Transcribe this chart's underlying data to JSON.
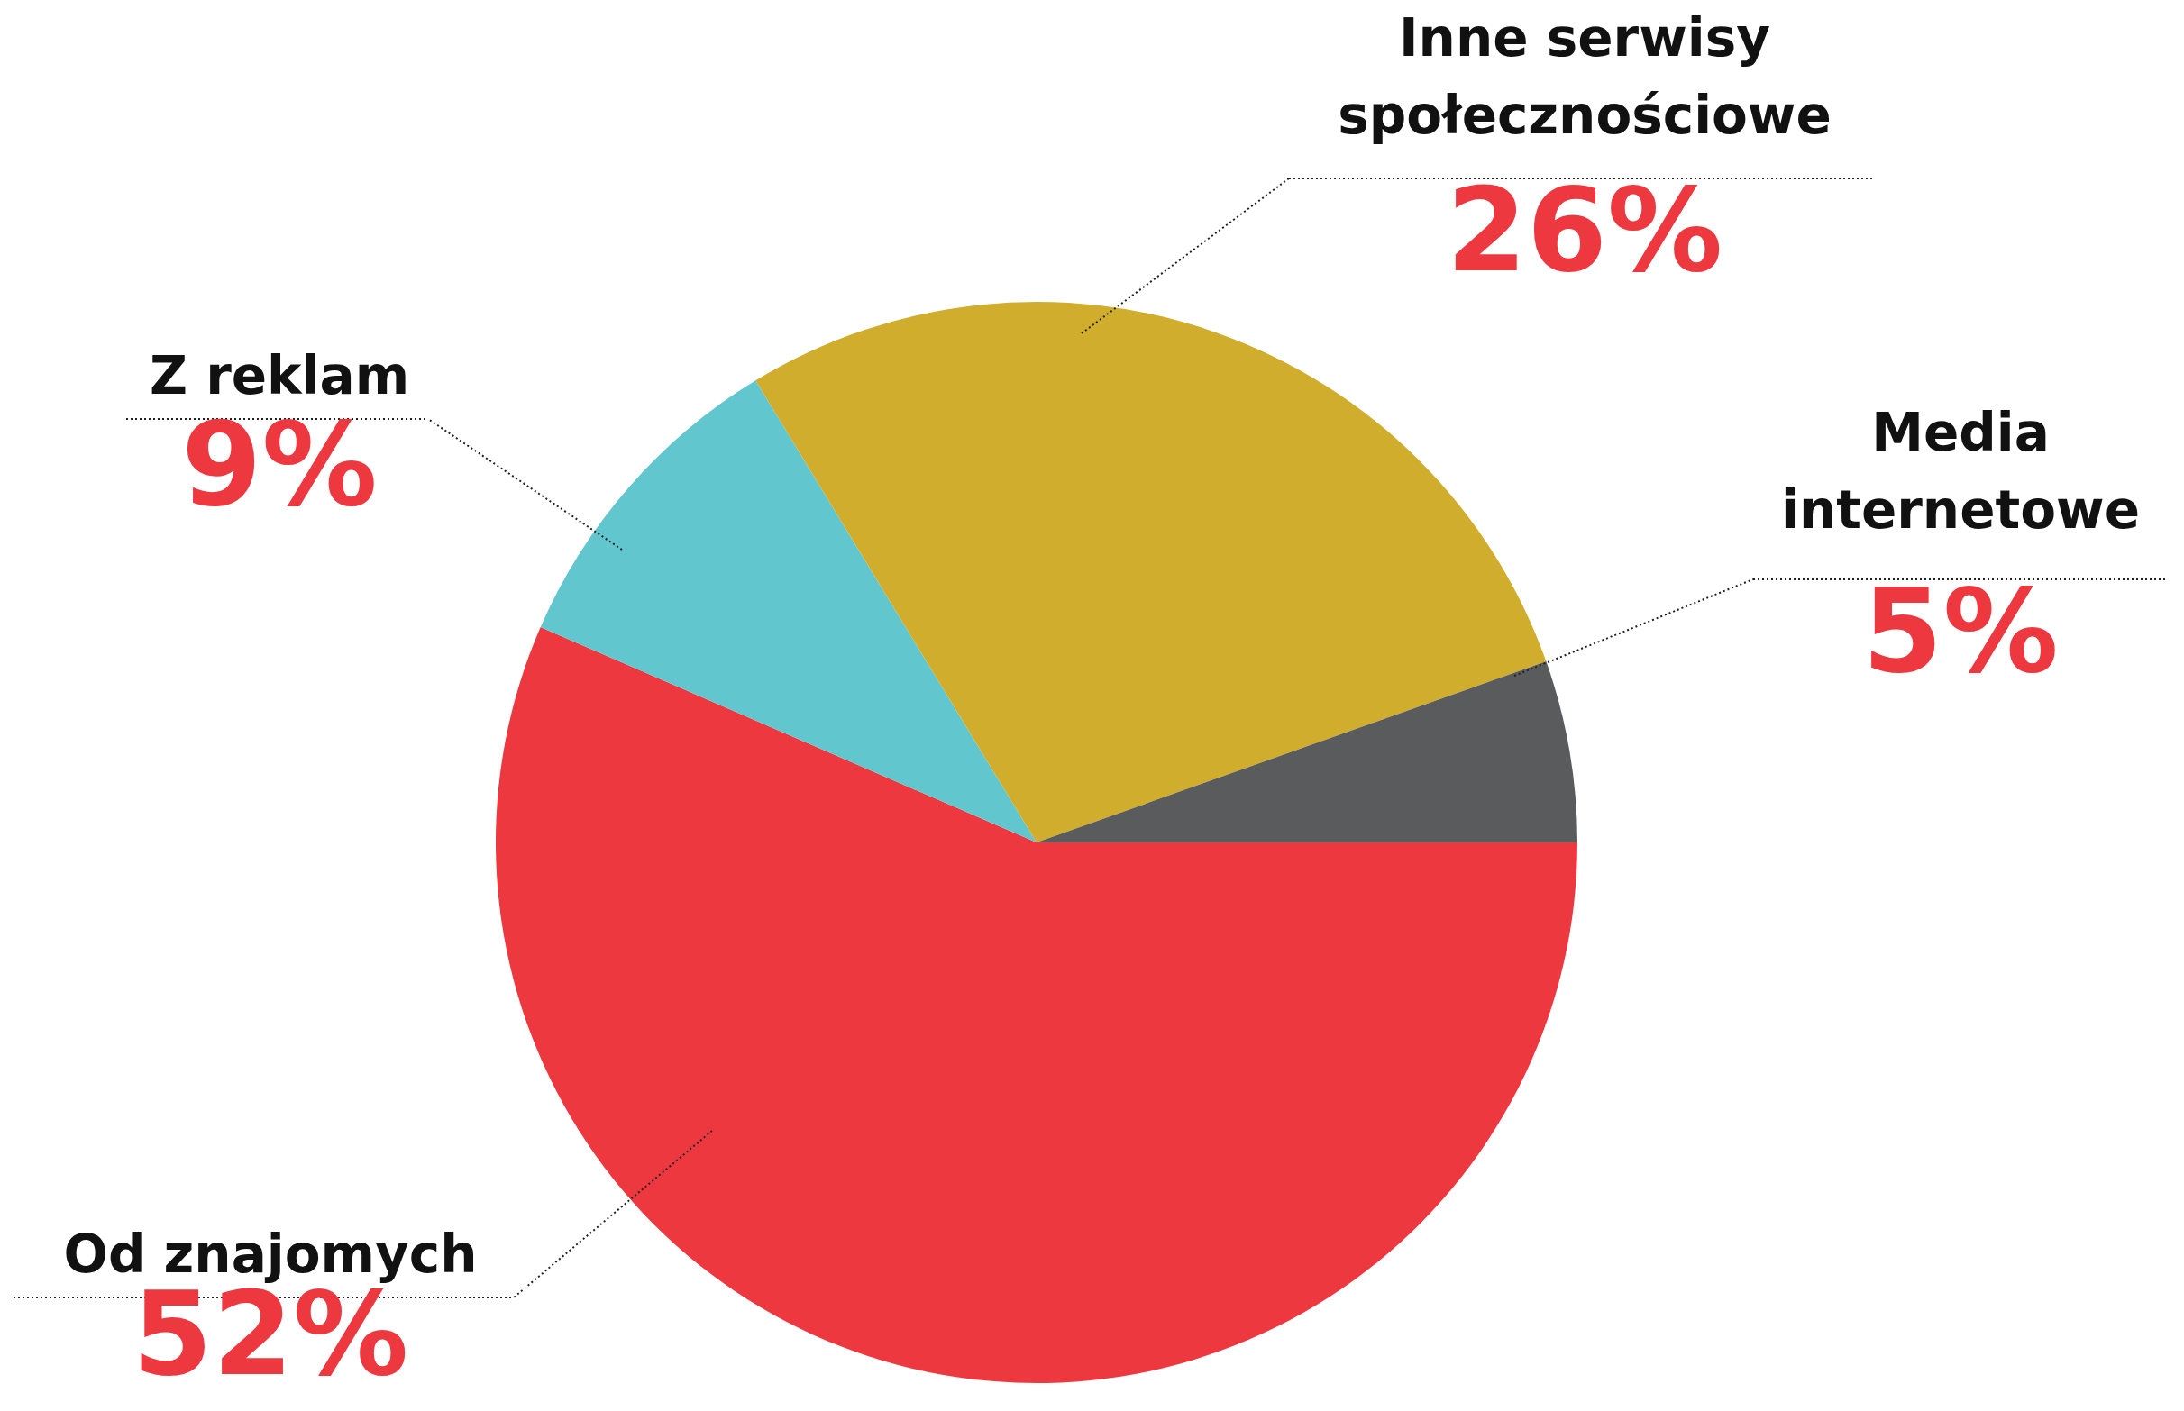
{
  "chart_data": {
    "type": "pie",
    "categories": [
      "Od znajomych",
      "Z reklam",
      "Inne serwisy społecznościowe",
      "Media internetowe"
    ],
    "values": [
      52,
      9,
      26,
      5
    ],
    "value_labels": [
      "52%",
      "9%",
      "26%",
      "5%"
    ],
    "colors": [
      "#ec383e",
      "#62c6ce",
      "#d1ad2e",
      "#5a5b5d"
    ],
    "legend": false
  }
}
